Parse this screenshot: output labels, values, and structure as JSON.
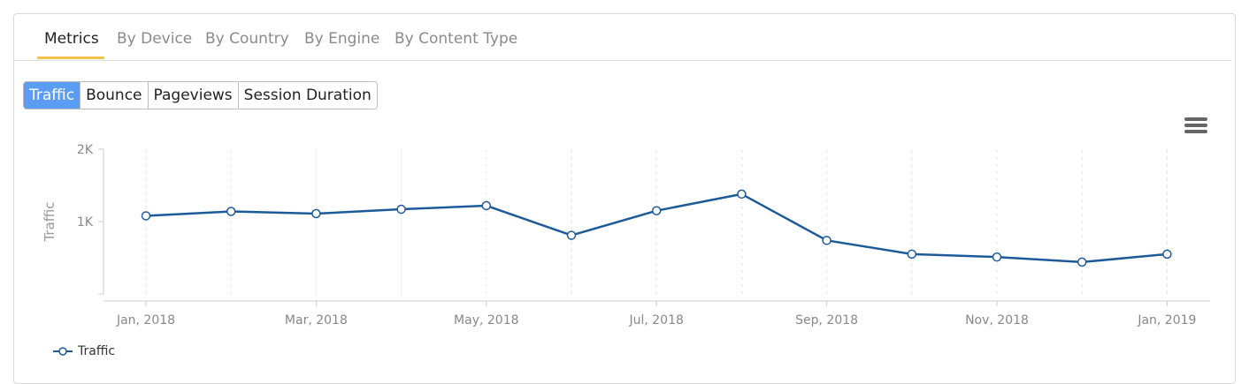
{
  "tabs": [
    {
      "label": "Metrics",
      "active": true
    },
    {
      "label": "By Device",
      "active": false
    },
    {
      "label": "By Country",
      "active": false
    },
    {
      "label": "By Engine",
      "active": false
    },
    {
      "label": "By Content Type",
      "active": false
    }
  ],
  "metric_buttons": [
    {
      "label": "Traffic",
      "active": true
    },
    {
      "label": "Bounce",
      "active": false
    },
    {
      "label": "Pageviews",
      "active": false
    },
    {
      "label": "Session Duration",
      "active": false
    }
  ],
  "menu_icon": "hamburger-menu-icon",
  "colors": {
    "line": "#1d5a9a",
    "accent": "#5b9cf5",
    "tab_underline": "#f0c24b"
  },
  "chart_data": {
    "type": "line",
    "title": "",
    "ylabel": "Traffic",
    "xlabel": "",
    "ylim": [
      0,
      2000
    ],
    "yticks": [
      {
        "value": 1000,
        "label": "1K"
      },
      {
        "value": 2000,
        "label": "2K"
      }
    ],
    "x": [
      "Jan, 2018",
      "Feb, 2018",
      "Mar, 2018",
      "Apr, 2018",
      "May, 2018",
      "Jun, 2018",
      "Jul, 2018",
      "Aug, 2018",
      "Sep, 2018",
      "Oct, 2018",
      "Nov, 2018",
      "Dec, 2018",
      "Jan, 2019"
    ],
    "x_tick_labels": [
      "Jan, 2018",
      "",
      "Mar, 2018",
      "",
      "May, 2018",
      "",
      "Jul, 2018",
      "",
      "Sep, 2018",
      "",
      "Nov, 2018",
      "",
      "Jan, 2019"
    ],
    "series": [
      {
        "name": "Traffic",
        "values": [
          1080,
          1140,
          1110,
          1170,
          1220,
          810,
          1150,
          1380,
          740,
          550,
          510,
          440,
          550
        ]
      }
    ],
    "grid": "vertical-dashed",
    "legend": "bottom-left"
  }
}
